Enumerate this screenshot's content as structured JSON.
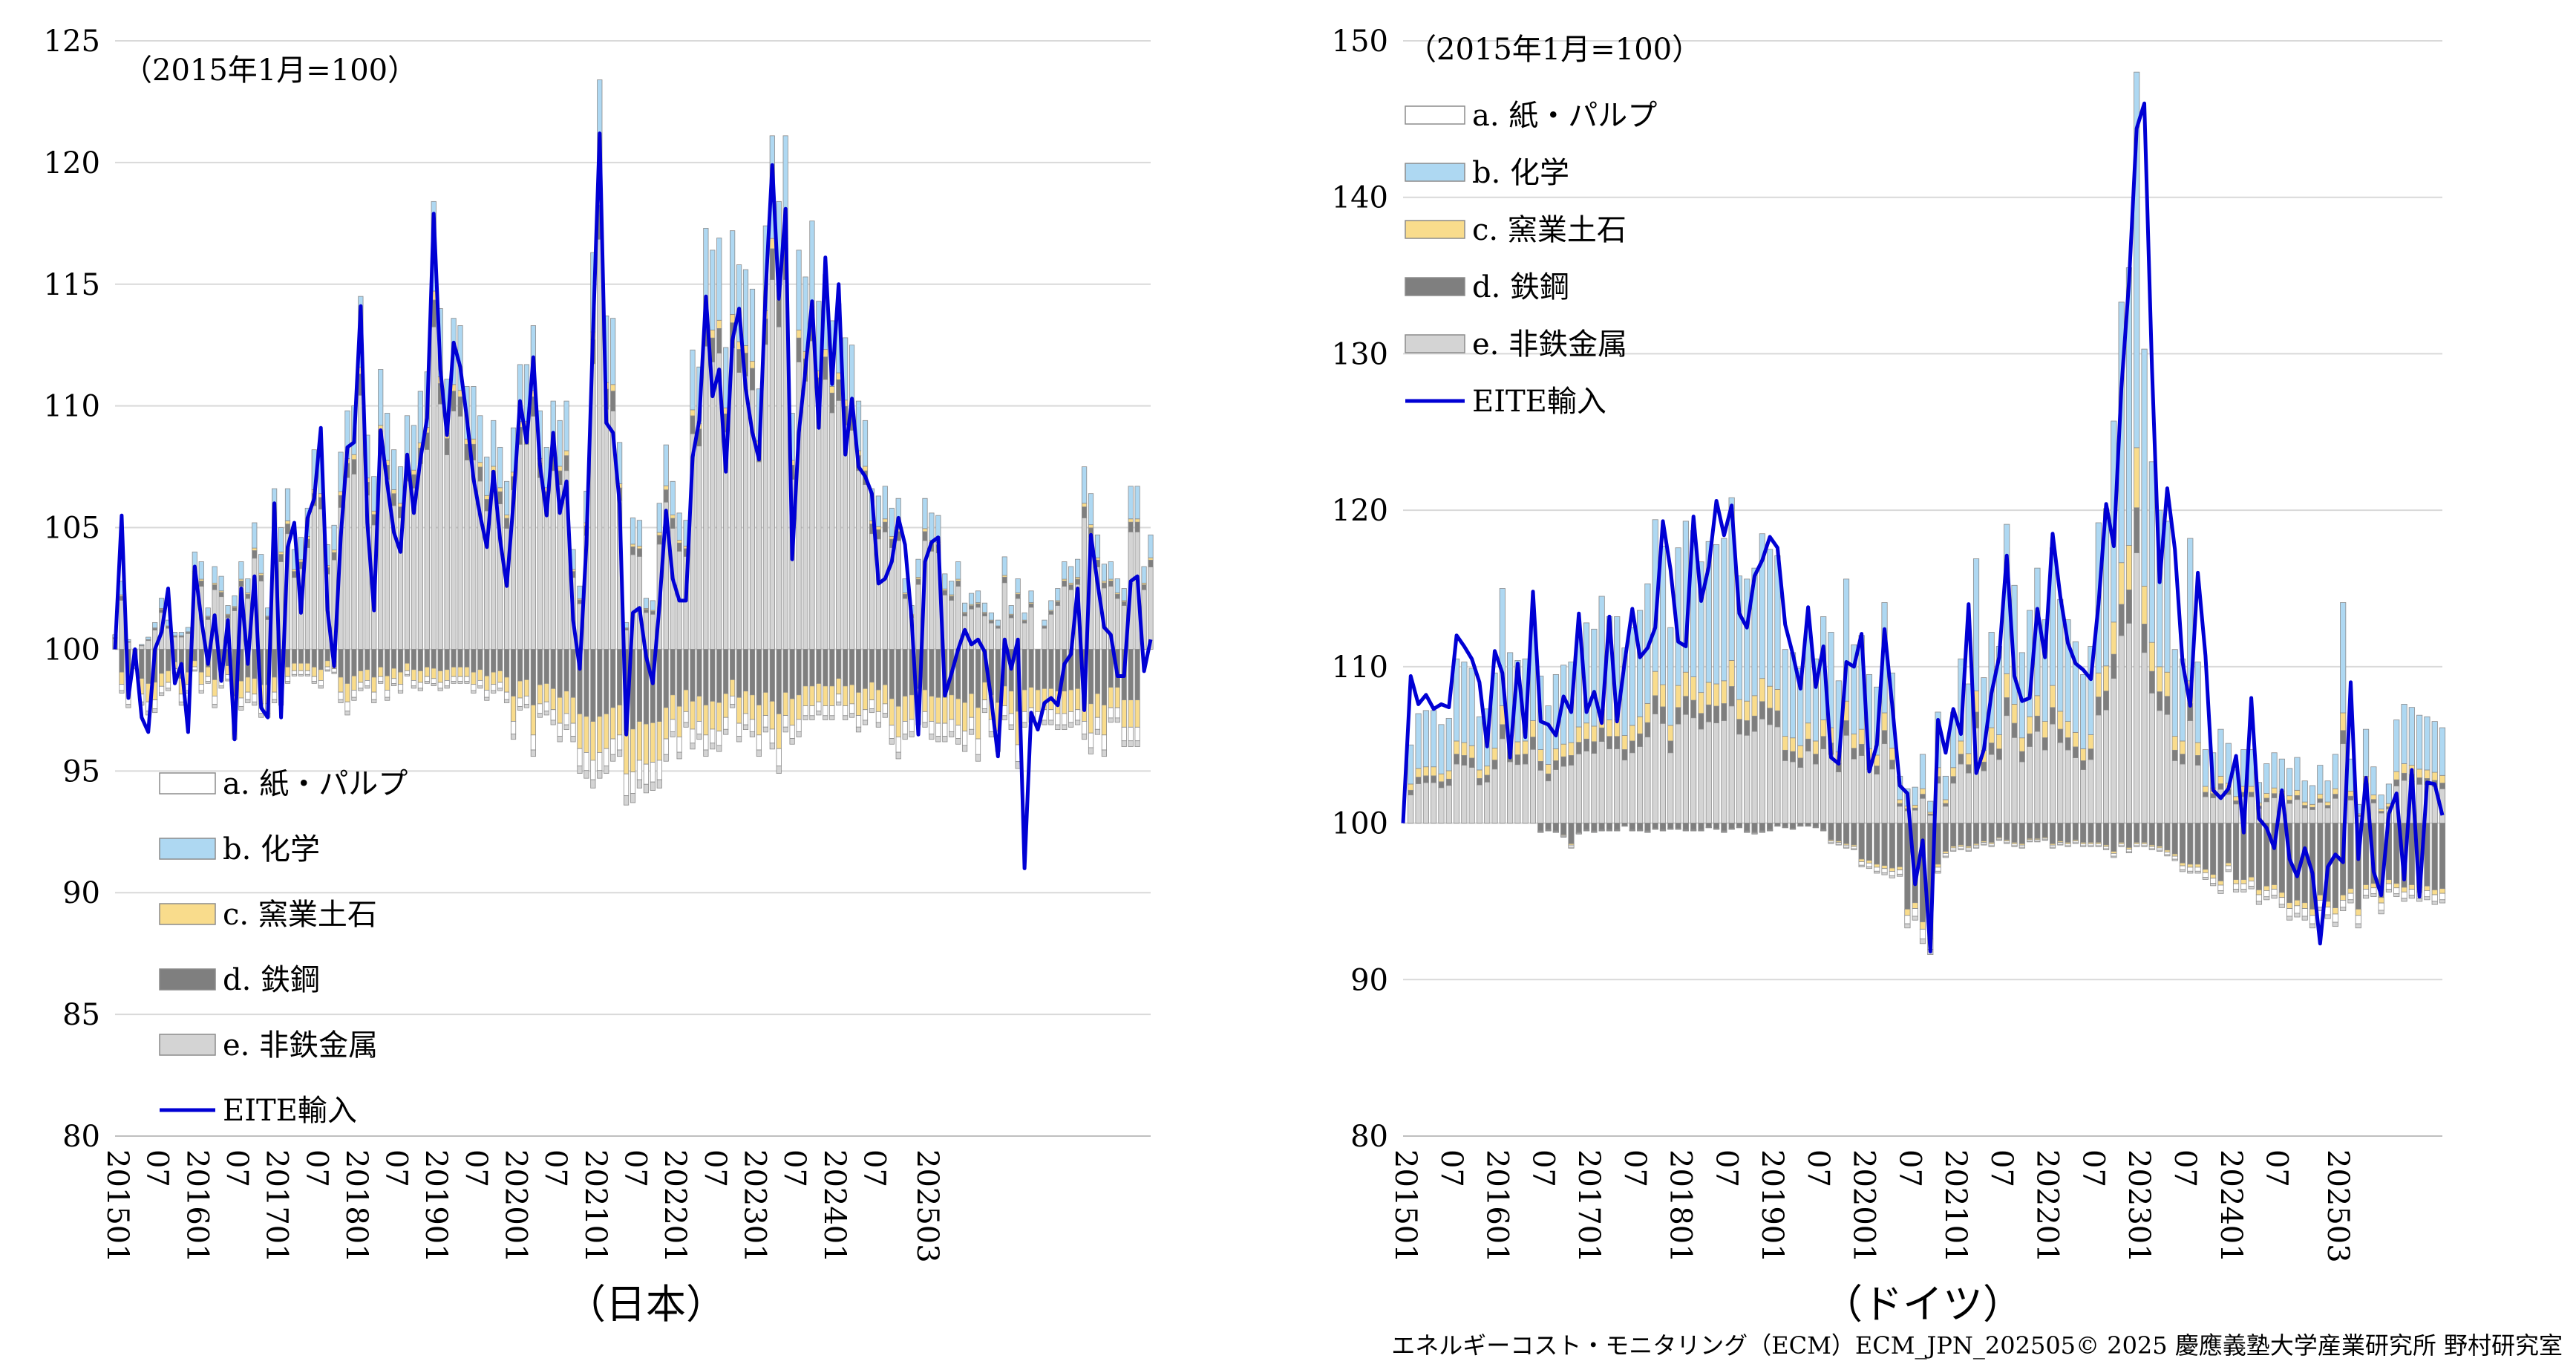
{
  "footer": "エネルギーコスト・モニタリング（ECM）ECM_JPN_202505© 2025 慶應義塾大学産業研究所 野村研究室",
  "colors": {
    "pulp": "#ffffff",
    "chem": "#aed8f2",
    "ceramic": "#f9dc8c",
    "steel": "#7f7f7f",
    "nonferrous": "#d4d4d4",
    "eite": "#0000d4"
  },
  "chart_data": [
    {
      "type": "bar",
      "stacked": true,
      "subtitle": "（日本）",
      "note": "（2015年1月=100）",
      "ylim": [
        80,
        125
      ],
      "ytick_step": 5,
      "grid": true,
      "legend_position": "bottom-left",
      "x_tick_labels": [
        "201501",
        "07",
        "201601",
        "07",
        "201701",
        "07",
        "201801",
        "07",
        "201901",
        "07",
        "202001",
        "07",
        "202101",
        "07",
        "202201",
        "07",
        "202301",
        "07",
        "202401",
        "07",
        "202503"
      ],
      "x_tick_months": [
        0,
        6,
        12,
        18,
        24,
        30,
        36,
        42,
        48,
        54,
        60,
        66,
        72,
        78,
        84,
        90,
        96,
        102,
        108,
        114,
        122
      ],
      "x_start": "2015-01",
      "x_end": "2025-03",
      "legend": [
        "a. 紙・パルプ",
        "b. 化学",
        "c. 窯業土石",
        "d. 鉄鋼",
        "e. 非鉄金属",
        "EITE輸入"
      ],
      "eite": [
        100,
        105.5,
        98,
        100,
        97.2,
        96.6,
        100,
        100.7,
        102.5,
        98.6,
        99.4,
        96.6,
        103.4,
        101.2,
        99.4,
        101.4,
        98.7,
        101.2,
        96.3,
        102.5,
        99.4,
        103,
        97.6,
        97.2,
        106,
        97.2,
        104.2,
        105.2,
        101.5,
        105.4,
        106.2,
        109.1,
        101.6,
        99.3,
        104.6,
        108.3,
        108.5,
        114.1,
        105.2,
        101.6,
        109,
        106.8,
        104.8,
        104,
        108,
        105.6,
        107.8,
        109.5,
        117.9,
        111.5,
        108.8,
        112.6,
        111.6,
        109.5,
        107,
        105.5,
        104.2,
        107.3,
        104.5,
        102.6,
        106,
        110.2,
        108.5,
        112,
        107.6,
        105.5,
        108.9,
        105.6,
        106.9,
        101.2,
        99.2,
        104.3,
        113,
        121.2,
        109.3,
        108.9,
        106,
        96.5,
        101.5,
        101.7,
        99.7,
        98.6,
        101.8,
        105.7,
        102.9,
        102,
        102,
        107.9,
        109.4,
        114.5,
        110.4,
        111.5,
        107.3,
        112.7,
        114,
        110.7,
        108.9,
        107.8,
        114.7,
        119.9,
        114.4,
        118.1,
        103.7,
        108.9,
        111.5,
        114.3,
        109.1,
        116.1,
        110.9,
        115,
        108,
        110.3,
        107.5,
        107.1,
        106.4,
        102.7,
        102.9,
        103.6,
        105.4,
        104.3,
        101.2,
        96.5,
        103.6,
        104.4,
        104.6,
        98.1,
        99,
        100,
        100.8,
        100.2,
        100.4,
        99.9,
        97.9,
        95.6,
        100.4,
        99.2,
        100.4,
        91,
        97.4,
        96.7,
        97.8,
        98,
        97.7,
        99.4,
        99.8,
        102.5,
        97.5,
        104.7,
        102.7,
        100.9,
        100.6,
        98.9,
        98.9,
        102.8,
        103,
        99.1,
        100.4
      ],
      "bar_top_pos": [
        100.6,
        102.8,
        100.4,
        99.8,
        100.2,
        100.5,
        101.1,
        102.1,
        101.2,
        100.7,
        100.7,
        100.9,
        104,
        103.6,
        101.7,
        103.4,
        103,
        101.8,
        102.2,
        103.6,
        102.9,
        105.2,
        103.9,
        101.7,
        106.6,
        105,
        106.6,
        104.1,
        104.6,
        105.8,
        108.2,
        108,
        104.3,
        105.1,
        108.1,
        109.8,
        110,
        114.5,
        108.8,
        107.1,
        111.5,
        109.7,
        108.2,
        107.5,
        109.6,
        109.2,
        110.6,
        111.4,
        118.4,
        114,
        111.1,
        113.6,
        113.3,
        110.8,
        110.8,
        109.6,
        107.9,
        109.4,
        108.3,
        106.9,
        109.1,
        111.7,
        111.7,
        113.3,
        109.8,
        108.3,
        110.2,
        109.4,
        110.2,
        104.1,
        102.6,
        106.5,
        116.3,
        123.4,
        113.7,
        113.6,
        108.5,
        101.1,
        105.4,
        105.3,
        102.1,
        102,
        106,
        108.4,
        106.9,
        105.6,
        105.3,
        112.3,
        111.6,
        117.3,
        116.4,
        116.9,
        112.4,
        117.2,
        115.8,
        115.6,
        114.8,
        110.7,
        117.4,
        121.1,
        118.4,
        121.1,
        109.7,
        116.4,
        115.3,
        117.6,
        114.3,
        115.4,
        113.5,
        114.2,
        112.8,
        112.5,
        110.2,
        109.4,
        106.6,
        106.3,
        106.7,
        105.8,
        106.2,
        102.9,
        101.8,
        103.7,
        106.2,
        105.6,
        105.5,
        103.1,
        102.8,
        103.6,
        101.9,
        102.3,
        102.4,
        101.9,
        101.5,
        101.2,
        103.8,
        101.8,
        102.9,
        101.5,
        102.4,
        99.9,
        101.2,
        102,
        102.5,
        103.6,
        103.4,
        103.7,
        107.5,
        106.4,
        104.7,
        103.5,
        103.6,
        102.9,
        102.5,
        106.7,
        106.7,
        103.4,
        104.7
      ],
      "bar_bottom_neg": [
        100,
        98.2,
        97.6,
        99.2,
        97.7,
        97.3,
        97.4,
        98.1,
        98.3,
        99,
        97.7,
        98.2,
        99.1,
        98.2,
        98.6,
        97.6,
        98.4,
        98.7,
        96.3,
        97.5,
        97.8,
        97.7,
        97.2,
        97.2,
        97.8,
        97.7,
        98.6,
        98.9,
        98.9,
        98.9,
        98.6,
        98.4,
        99.1,
        99,
        97.8,
        97.3,
        97.9,
        98.3,
        98.4,
        97.8,
        98.6,
        97.9,
        98.5,
        98.2,
        98.9,
        98.4,
        98.3,
        98.6,
        98.5,
        98.3,
        98.4,
        98.6,
        98.6,
        98.6,
        98.2,
        98.4,
        97.9,
        98.2,
        98.3,
        97.8,
        96.3,
        97.5,
        97.6,
        95.6,
        97.2,
        97.3,
        96.9,
        96.2,
        96.7,
        96.2,
        94.9,
        94.7,
        94.3,
        94.7,
        94.9,
        95.4,
        95.6,
        93.6,
        93.7,
        94.3,
        94.1,
        94.2,
        94.3,
        95.4,
        96.4,
        95.5,
        96.8,
        95.9,
        96.3,
        95.6,
        95.9,
        95.8,
        96.5,
        97.6,
        96.2,
        96.7,
        96.4,
        95.6,
        96.6,
        95.9,
        94.9,
        96.6,
        96.1,
        96.4,
        97.1,
        97.1,
        97.3,
        97.1,
        97.1,
        97.7,
        97.1,
        97.2,
        96.6,
        96.9,
        97.4,
        96.8,
        97.2,
        96.1,
        95.5,
        96.3,
        96.4,
        96.9,
        96.8,
        96.3,
        96.2,
        96.2,
        96.4,
        96.1,
        95.8,
        96.5,
        95.4,
        97.4,
        96.4,
        95.8,
        97.1,
        96.7,
        95.1,
        96.8,
        97,
        96.8,
        96.9,
        96.9,
        96.7,
        96.7,
        96.8,
        96.9,
        96.3,
        95.7,
        96.5,
        95.6,
        97,
        97,
        96,
        96,
        96
      ],
      "pos_share": {
        "nonferrous": 0.72,
        "steel": 0.06,
        "ceramic": 0.02,
        "chem": 0.2
      },
      "neg_share": {
        "steel": 0.52,
        "ceramic": 0.28,
        "pulp": 0.14,
        "nonferrous": 0.06
      }
    },
    {
      "type": "bar",
      "stacked": true,
      "subtitle": "（ドイツ）",
      "note": "（2015年1月=100）",
      "ylim": [
        80,
        150
      ],
      "ytick_step": 10,
      "grid": true,
      "legend_position": "top-left",
      "x_tick_labels": [
        "201501",
        "07",
        "201601",
        "07",
        "201701",
        "07",
        "201801",
        "07",
        "201901",
        "07",
        "202001",
        "07",
        "202101",
        "07",
        "202201",
        "07",
        "202301",
        "07",
        "202401",
        "07",
        "202503"
      ],
      "x_tick_months": [
        0,
        6,
        12,
        18,
        24,
        30,
        36,
        42,
        48,
        54,
        60,
        66,
        72,
        78,
        84,
        90,
        96,
        102,
        108,
        114,
        122
      ],
      "x_start": "2015-01",
      "x_end": "2025-03",
      "legend": [
        "a. 紙・パルプ",
        "b. 化学",
        "c. 窯業土石",
        "d. 鉄鋼",
        "e. 非鉄金属",
        "EITE輸入"
      ],
      "eite": [
        100,
        109.4,
        107.6,
        108.2,
        107.3,
        107.6,
        107.4,
        112,
        111.3,
        110.5,
        109,
        104.9,
        111,
        109.6,
        104.2,
        110.2,
        105.5,
        114.8,
        106.5,
        106.3,
        105.6,
        108.1,
        107.1,
        113.4,
        107.1,
        108.4,
        106.4,
        113.2,
        106.5,
        110.3,
        113.7,
        110.6,
        111.2,
        112.5,
        119.3,
        116.2,
        111.6,
        111.3,
        119.6,
        114.2,
        116.4,
        120.6,
        118.4,
        120.3,
        113.4,
        112.5,
        115.8,
        116.8,
        118.3,
        117.6,
        112.7,
        110.8,
        108.6,
        113.8,
        108.7,
        111.3,
        104.2,
        103.8,
        110.3,
        110,
        112.1,
        103.3,
        105,
        112.4,
        107.6,
        102.4,
        101.9,
        96.1,
        98.9,
        91.8,
        106.6,
        104.5,
        107.3,
        105.7,
        114,
        103.2,
        104.7,
        108.3,
        110.6,
        117.1,
        109.4,
        107.8,
        108,
        113.7,
        110.6,
        118.5,
        114.5,
        111.5,
        110.2,
        109.8,
        109.2,
        114,
        120.4,
        117.7,
        127.8,
        134.6,
        144.4,
        146,
        129.1,
        115.4,
        121.4,
        117.5,
        110.3,
        107.5,
        116,
        110.7,
        102.1,
        101.6,
        102.2,
        104.3,
        99.4,
        108,
        100.3,
        99.7,
        98.4,
        102.1,
        97.7,
        96.6,
        98.4,
        96.8,
        92.3,
        97.2,
        98,
        97.5,
        109,
        97.7,
        102.9,
        96.9,
        95.4,
        100.6,
        101.9,
        96.4,
        103.4,
        95.3,
        102.6,
        102.5,
        100.5
      ],
      "bar_top_pos": [
        100,
        105,
        107,
        107.2,
        107.2,
        106.3,
        106.7,
        110.5,
        110.3,
        109.9,
        106.8,
        107.3,
        109.6,
        115,
        110.9,
        110.4,
        110.5,
        113.1,
        109.4,
        107.5,
        109.5,
        110.1,
        110.3,
        112.3,
        112.8,
        112.4,
        114.5,
        113.2,
        113.2,
        111.2,
        112.5,
        113.6,
        115.3,
        119.4,
        117.7,
        112.5,
        117.6,
        119.3,
        118.7,
        116.7,
        118,
        117.8,
        118.2,
        120.8,
        115.8,
        115.6,
        116.3,
        118.5,
        117.5,
        117.1,
        111.1,
        110.9,
        109.9,
        112.8,
        110.5,
        113.2,
        112.2,
        109.1,
        115.6,
        111.4,
        112,
        109.5,
        108.7,
        114.1,
        109.6,
        103,
        102.2,
        102.3,
        104.4,
        101.4,
        107.1,
        103,
        107.1,
        110.5,
        108.9,
        116.9,
        109.3,
        112.2,
        111.3,
        119.1,
        115.2,
        110.9,
        113.6,
        116.3,
        113,
        117.6,
        114.3,
        113,
        111.6,
        109.5,
        111.3,
        119.2,
        120.1,
        125.7,
        133.3,
        135.5,
        148,
        130.3,
        123.1,
        120,
        119.3,
        111.1,
        110.5,
        118.2,
        110.3,
        104.7,
        104.5,
        106,
        105.1,
        103.4,
        104.7,
        104.7,
        102.6,
        103.8,
        104.5,
        104.1,
        103.5,
        104.2,
        102.7,
        102.4,
        103.7,
        102.7,
        104.4,
        114.1,
        104.1,
        101.2,
        106,
        103.6,
        101.8,
        102.5,
        106.6,
        107.6,
        107.4,
        106.9,
        106.8,
        106.5,
        106.1
      ],
      "bar_bottom_neg": [
        100,
        100,
        100,
        100,
        100,
        100,
        100,
        100,
        100,
        100,
        100,
        100,
        100,
        100,
        100,
        100,
        100,
        100,
        99.4,
        99.5,
        99.4,
        99.1,
        98.4,
        99.3,
        99.5,
        99.4,
        99.5,
        99.5,
        99.5,
        99.8,
        99.5,
        99.5,
        99.4,
        99.6,
        99.5,
        99.6,
        99.6,
        99.5,
        99.5,
        99.5,
        99.7,
        99.6,
        99.4,
        99.6,
        99.7,
        99.4,
        99.3,
        99.4,
        99.5,
        99.8,
        99.7,
        99.6,
        99.8,
        99.8,
        99.7,
        99.5,
        98.7,
        98.6,
        98.4,
        98.3,
        97.2,
        97.1,
        96.8,
        96.7,
        96.5,
        96.6,
        93.3,
        93.8,
        92.3,
        91.6,
        96.8,
        97.8,
        98.2,
        98.3,
        98.2,
        98.4,
        98.6,
        98.5,
        98.9,
        98.7,
        98.5,
        98.4,
        98.8,
        98.8,
        98.9,
        98.4,
        98.6,
        98.5,
        98.7,
        98.5,
        98.5,
        98.5,
        98.3,
        97.8,
        98.5,
        98.1,
        98.5,
        98.5,
        98.3,
        98.2,
        97.9,
        97.6,
        96.9,
        96.8,
        96.8,
        96.4,
        96,
        95.5,
        96.9,
        95.6,
        95.6,
        95.8,
        94.8,
        95.1,
        95.2,
        94.6,
        93.8,
        94,
        93.8,
        93.3,
        94.4,
        93.9,
        93.4,
        94.4,
        94.9,
        93.3,
        95.2,
        95.3,
        94.2,
        95.6,
        95.3,
        95,
        95.2,
        95,
        95.1,
        94.8,
        94.9
      ],
      "pos_share": {
        "nonferrous": 0.36,
        "steel": 0.06,
        "ceramic": 0.08,
        "chem": 0.5
      },
      "neg_share": {
        "steel": 0.82,
        "ceramic": 0.06,
        "pulp": 0.08,
        "nonferrous": 0.04
      }
    }
  ]
}
